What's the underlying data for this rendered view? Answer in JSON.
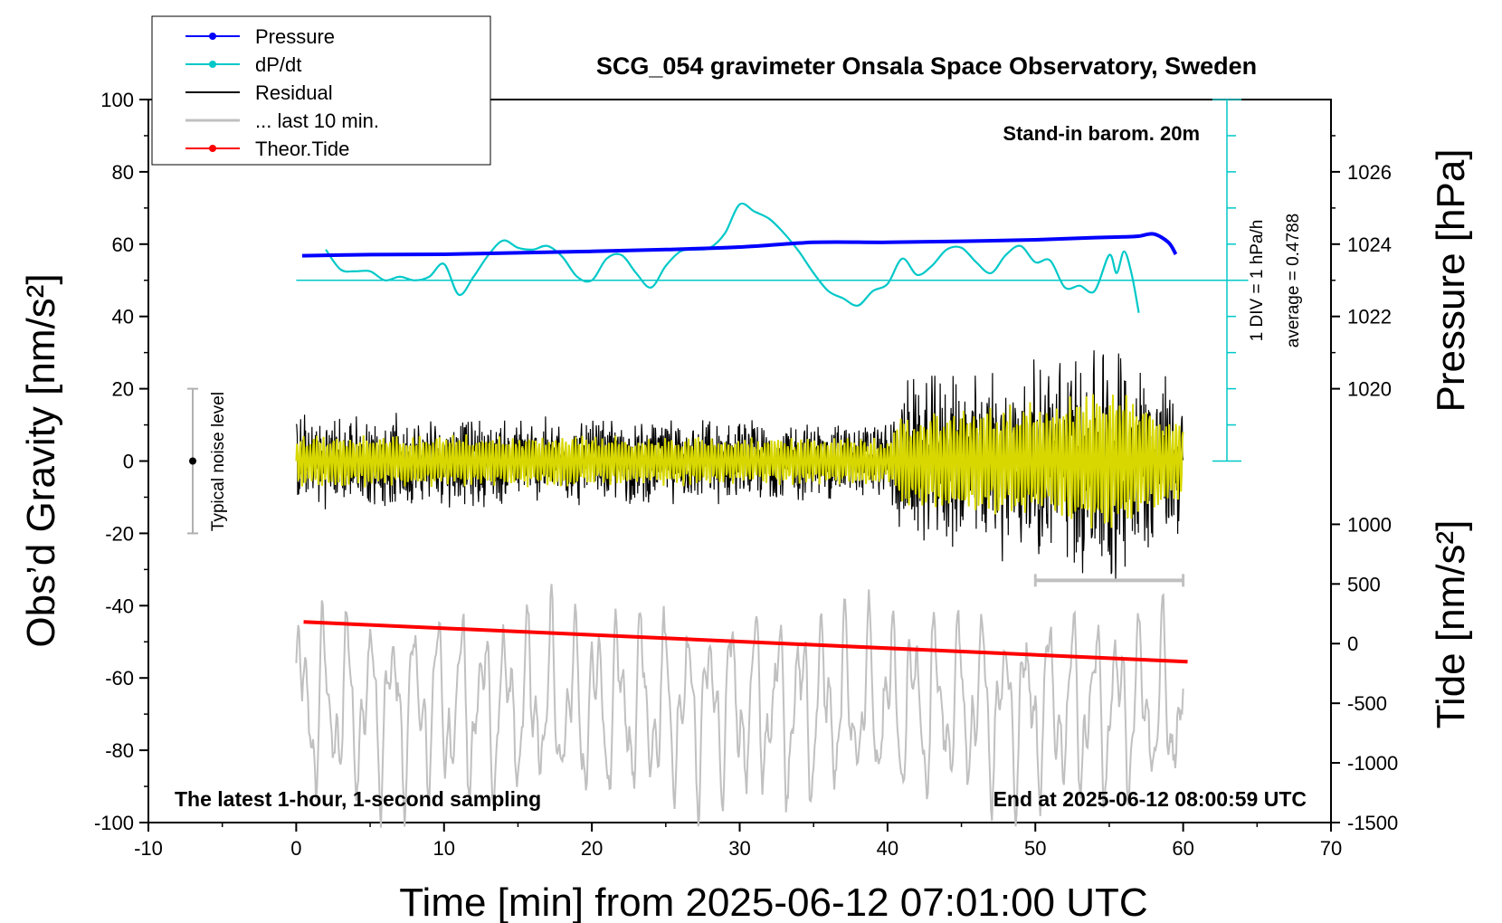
{
  "chart_data": {
    "type": "line",
    "title": "SCG_054 gravimeter Onsala Space Observatory, Sweden",
    "xlabel": "Time [min] from 2025-06-12 07:01:00 UTC",
    "ylabel_left": "Obs’d Gravity [nm/s²]",
    "ylabel_right_pressure": "Pressure [hPa]",
    "ylabel_right_tide": "Tide [nm/s²]",
    "xlim": [
      -10,
      70
    ],
    "ylim_left": [
      -100,
      100
    ],
    "x_ticks": [
      -10,
      0,
      10,
      20,
      30,
      40,
      50,
      60,
      70
    ],
    "y_ticks_left": [
      100,
      80,
      60,
      40,
      20,
      0,
      -20,
      -40,
      -60,
      -80,
      -100
    ],
    "pressure_ticks": [
      1026,
      1024,
      1022,
      1020
    ],
    "pressure_gravity_mapping": {
      "1026": 80,
      "1024": 60,
      "1022": 40,
      "1020": 20
    },
    "tide_ticks": [
      1000,
      500,
      0,
      -500,
      -1000,
      -1500
    ],
    "tide_gravity_mapping": {
      "1000": -17.5,
      "500": -34,
      "0": -50.5,
      "-500": -67,
      "-1000": -83.5,
      "-1500": -100
    },
    "annotations": {
      "barometer": "Stand-in barom. 20m",
      "div_scale": "1 DIV = 1 hPa/h",
      "average": "average = 0.4788",
      "noise": "Typical noise level",
      "bottom_left": "The latest 1-hour, 1-second sampling",
      "bottom_right": "End at 2025-06-12 08:00:59 UTC"
    },
    "legend": [
      {
        "label": "Pressure",
        "color": "#0000ff",
        "marker": "dot"
      },
      {
        "label": "dP/dt",
        "color": "#00c8c8",
        "marker": "dot"
      },
      {
        "label": "Residual",
        "color": "#000000",
        "marker": "none"
      },
      {
        "label": "... last 10 min.",
        "color": "#c0c0c0",
        "marker": "none"
      },
      {
        "label": "Theor.Tide",
        "color": "#ff0000",
        "marker": "dot"
      }
    ],
    "series": [
      {
        "name": "Pressure",
        "color": "#0000ff",
        "unit": "hPa",
        "x": [
          0.4,
          5,
          10,
          15,
          20,
          25,
          30,
          35,
          40,
          45,
          50,
          54,
          56,
          57,
          58,
          59,
          59.5
        ],
        "y": [
          1023.68,
          1023.71,
          1023.72,
          1023.76,
          1023.8,
          1023.85,
          1023.92,
          1024.05,
          1024.05,
          1024.08,
          1024.12,
          1024.18,
          1024.2,
          1024.22,
          1024.28,
          1024.05,
          1023.72
        ]
      },
      {
        "name": "dP/dt",
        "color": "#00c8c8",
        "unit": "gravity-axis",
        "x": [
          2,
          3,
          4,
          5,
          6,
          7,
          8,
          9,
          10,
          11,
          12,
          13,
          14,
          15,
          16,
          17,
          18,
          19,
          20,
          21,
          22,
          23,
          24,
          25,
          26,
          27,
          28,
          29,
          30,
          31,
          32,
          33,
          34,
          35,
          36,
          37,
          38,
          39,
          40,
          41,
          42,
          43,
          44,
          45,
          46,
          47,
          48,
          49,
          50,
          51,
          52,
          53,
          54,
          55,
          55.5,
          56,
          56.5,
          57
        ],
        "y": [
          58.5,
          53,
          52.5,
          52.5,
          50,
          51,
          50,
          51,
          54.5,
          46,
          51,
          57,
          61,
          59,
          58.5,
          59.5,
          56.5,
          51,
          50,
          56,
          57,
          52,
          48,
          54,
          58,
          58.5,
          59,
          63,
          71,
          69,
          67,
          63,
          58,
          52,
          47,
          45,
          43,
          47,
          49,
          56,
          51.5,
          54,
          58.5,
          59,
          55,
          52,
          57,
          59.5,
          55,
          55.5,
          48,
          48.5,
          47,
          57,
          52,
          58,
          52,
          41
        ]
      },
      {
        "name": "dP/dt average line",
        "color": "#00c8c8",
        "unit": "gravity-axis",
        "x": [
          0,
          64.4
        ],
        "y": [
          50,
          50
        ]
      },
      {
        "name": "Residual",
        "color": "#000000",
        "unit": "nm/s²",
        "x_range": [
          0,
          60
        ],
        "description_envelope": {
          "x": [
            0,
            40,
            41,
            50,
            55,
            60
          ],
          "amplitude": [
            14,
            12,
            24,
            30,
            38,
            22
          ]
        }
      },
      {
        "name": "Residual filtered",
        "color": "#d8d800",
        "unit": "nm/s²",
        "x_range": [
          0,
          60
        ]
      },
      {
        "name": "... last 10 min.",
        "color": "#c0c0c0",
        "unit": "nm/s²",
        "x_range": [
          0,
          60
        ],
        "center": -68,
        "amplitude": 28
      },
      {
        "name": "Theor.Tide",
        "color": "#ff0000",
        "unit": "nm/s²",
        "x": [
          0.5,
          60.3
        ],
        "y": [
          0,
          180
        ]
      }
    ],
    "noise_bar": {
      "x": -7,
      "ymin": -20,
      "ymax": 20,
      "center": 0
    },
    "last10_bar": {
      "x": [
        50,
        60
      ],
      "y": -33
    }
  }
}
